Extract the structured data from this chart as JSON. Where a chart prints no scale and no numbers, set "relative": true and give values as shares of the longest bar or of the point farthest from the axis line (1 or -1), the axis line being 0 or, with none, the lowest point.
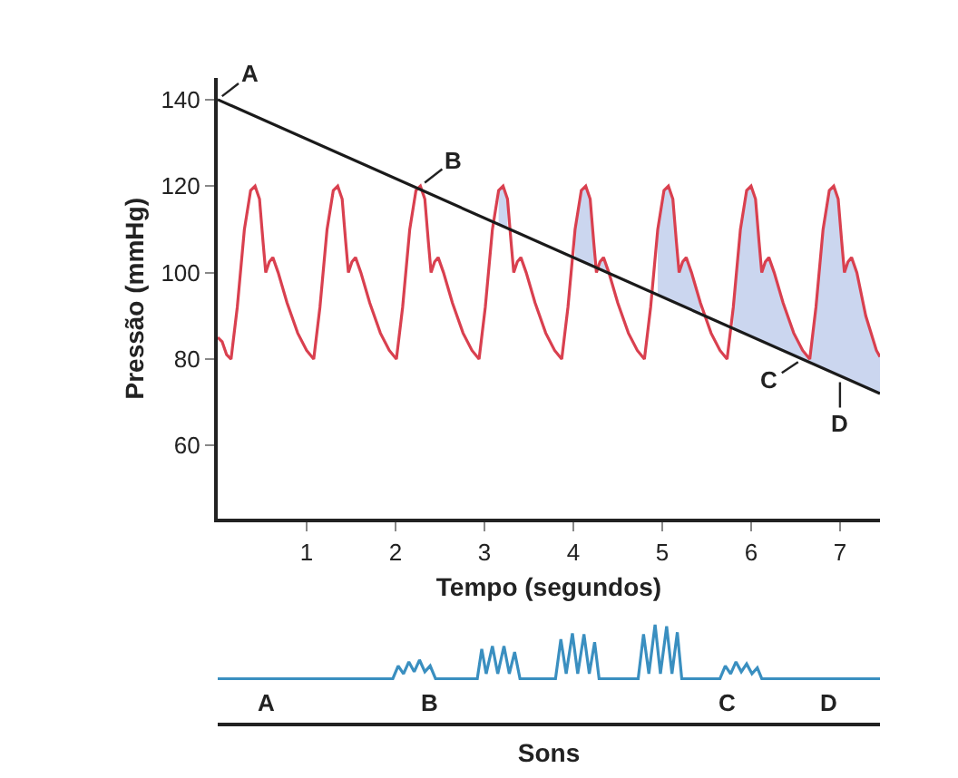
{
  "chart_data": [
    {
      "type": "line",
      "xlabel": "Tempo (segundos)",
      "ylabel": "Pressão (mmHg)",
      "xlim": [
        0,
        7.45
      ],
      "ylim": [
        43,
        145
      ],
      "xticks": [
        1,
        2,
        3,
        4,
        5,
        6,
        7
      ],
      "yticks": [
        60,
        80,
        100,
        120,
        140
      ],
      "marker": "none",
      "line_style": "solid",
      "series": [
        {
          "color": "#d9404f",
          "x": [
            0,
            0.05,
            0.1,
            0.15,
            0.22,
            0.3,
            0.37,
            0.42,
            0.47,
            0.51,
            0.54,
            0.58,
            0.62,
            0.68,
            0.78,
            0.9,
            1.0,
            1.08,
            1.15,
            1.23,
            1.3,
            1.35,
            1.4,
            1.44,
            1.47,
            1.51,
            1.55,
            1.61,
            1.71,
            1.83,
            1.93,
            2.01,
            2.08,
            2.16,
            2.23,
            2.28,
            2.33,
            2.37,
            2.4,
            2.44,
            2.48,
            2.54,
            2.64,
            2.76,
            2.86,
            2.94,
            3.01,
            3.09,
            3.16,
            3.21,
            3.26,
            3.3,
            3.33,
            3.37,
            3.41,
            3.47,
            3.57,
            3.69,
            3.79,
            3.87,
            3.94,
            4.02,
            4.09,
            4.14,
            4.19,
            4.23,
            4.26,
            4.3,
            4.34,
            4.4,
            4.5,
            4.62,
            4.72,
            4.8,
            4.87,
            4.95,
            5.02,
            5.07,
            5.12,
            5.16,
            5.19,
            5.23,
            5.27,
            5.33,
            5.43,
            5.55,
            5.65,
            5.73,
            5.8,
            5.88,
            5.95,
            6.0,
            6.05,
            6.09,
            6.12,
            6.16,
            6.2,
            6.26,
            6.36,
            6.48,
            6.58,
            6.66,
            6.73,
            6.81,
            6.88,
            6.93,
            6.98,
            7.02,
            7.05,
            7.09,
            7.13,
            7.19,
            7.29,
            7.41,
            7.45
          ],
          "values": [
            85,
            84,
            81,
            80,
            92,
            110,
            119,
            120,
            117,
            107,
            100,
            102.5,
            103.5,
            100,
            93,
            86,
            82,
            80,
            92,
            110,
            119,
            120,
            117,
            107,
            100,
            102.5,
            103.5,
            100,
            93,
            86,
            82,
            80,
            92,
            110,
            119,
            120,
            117,
            107,
            100,
            102.5,
            103.5,
            100,
            93,
            86,
            82,
            80,
            92,
            110,
            119,
            120,
            117,
            107,
            100,
            102.5,
            103.5,
            100,
            93,
            86,
            82,
            80,
            92,
            110,
            119,
            120,
            117,
            107,
            100,
            102.5,
            103.5,
            100,
            93,
            86,
            82,
            80,
            92,
            110,
            119,
            120,
            117,
            107,
            100,
            102.5,
            103.5,
            100,
            93,
            86,
            82,
            80,
            92,
            110,
            119,
            120,
            117,
            107,
            100,
            102.5,
            103.5,
            100,
            93,
            86,
            82,
            80,
            92,
            110,
            119,
            120,
            117,
            107,
            100,
            102.5,
            103.5,
            100,
            90,
            82,
            80.5
          ],
          "lower": [
            null,
            null,
            null,
            null,
            null,
            null,
            null,
            null,
            null,
            null,
            null,
            null,
            null,
            null,
            null,
            null,
            null,
            null,
            null,
            null,
            null,
            null,
            null,
            null,
            null,
            null,
            null,
            null,
            null,
            null,
            null,
            null,
            null,
            null,
            null,
            null,
            null,
            null,
            null,
            null,
            null,
            null,
            null,
            null,
            null,
            null,
            null,
            null,
            111.2,
            110.7,
            110.2,
            null,
            null,
            null,
            null,
            null,
            null,
            null,
            null,
            null,
            null,
            103.3,
            102.7,
            102.2,
            101.8,
            101.4,
            null,
            100.7,
            100.4,
            99.8,
            null,
            null,
            null,
            null,
            null,
            94.8,
            94.2,
            93.7,
            93.3,
            92.9,
            92.6,
            92.3,
            91.9,
            91.3,
            90.4,
            null,
            null,
            null,
            87.1,
            86.3,
            85.7,
            85.2,
            84.8,
            84.4,
            84.1,
            83.8,
            83.4,
            82.9,
            81.9,
            80.9,
            79.9,
            79.2,
            78.6,
            77.8,
            77.2,
            76.7,
            76.3,
            75.9,
            75.6,
            75.3,
            74.9,
            74.4,
            73.5,
            72.4,
            72.0
          ],
          "upper": [
            null,
            null,
            null,
            null,
            null,
            null,
            null,
            null,
            null,
            null,
            null,
            null,
            null,
            null,
            null,
            null,
            null,
            null,
            null,
            null,
            null,
            null,
            null,
            null,
            null,
            null,
            null,
            null,
            null,
            null,
            null,
            null,
            null,
            null,
            null,
            null,
            null,
            null,
            null,
            null,
            null,
            null,
            null,
            null,
            null,
            null,
            null,
            null,
            119,
            120,
            117,
            null,
            null,
            null,
            null,
            null,
            null,
            null,
            null,
            null,
            null,
            110,
            119,
            120,
            117,
            107,
            null,
            102.5,
            103.5,
            100,
            null,
            null,
            null,
            null,
            null,
            110,
            119,
            120,
            117,
            107,
            100,
            102.5,
            103.5,
            100,
            93,
            null,
            null,
            null,
            92,
            110,
            119,
            120,
            117,
            107,
            100,
            102.5,
            103.5,
            100,
            93,
            86,
            82,
            80,
            92,
            110,
            119,
            120,
            117,
            107,
            100,
            102.5,
            103.5,
            100,
            90,
            82,
            80.5
          ]
        },
        {
          "color": "#1a1a1a",
          "x": [
            0,
            7.45
          ],
          "values": [
            140,
            72
          ]
        }
      ],
      "annotations": [
        {
          "text": "A",
          "x": 0,
          "y": 140
        },
        {
          "text": "B",
          "x": 2.28,
          "y": 120
        },
        {
          "text": "C",
          "x": 6.58,
          "y": 80
        },
        {
          "text": "D",
          "x": 7.0,
          "y": 75.9
        }
      ]
    },
    {
      "type": "line",
      "relative": true,
      "xlabel": "Sons",
      "xlim": [
        0,
        7.45
      ],
      "marker": "none",
      "series": [
        {
          "color": "#3a8fc0",
          "x": [
            0,
            1.97,
            2.03,
            2.09,
            2.15,
            2.21,
            2.27,
            2.33,
            2.39,
            2.45,
            2.92,
            2.97,
            3.02,
            3.09,
            3.15,
            3.22,
            3.28,
            3.34,
            3.4,
            3.8,
            3.86,
            3.92,
            3.99,
            4.05,
            4.12,
            4.18,
            4.24,
            4.29,
            4.73,
            4.79,
            4.85,
            4.92,
            4.98,
            5.05,
            5.11,
            5.17,
            5.22,
            5.65,
            5.71,
            5.77,
            5.83,
            5.89,
            5.95,
            6.01,
            6.07,
            6.12,
            7.45
          ],
          "values": [
            0.45,
            0.45,
            0.58,
            0.5,
            0.62,
            0.52,
            0.64,
            0.52,
            0.58,
            0.45,
            0.45,
            0.75,
            0.5,
            0.78,
            0.5,
            0.78,
            0.5,
            0.72,
            0.45,
            0.45,
            0.85,
            0.5,
            0.91,
            0.5,
            0.9,
            0.5,
            0.82,
            0.45,
            0.45,
            0.9,
            0.5,
            1.0,
            0.5,
            0.98,
            0.5,
            0.92,
            0.45,
            0.45,
            0.58,
            0.5,
            0.62,
            0.52,
            0.6,
            0.5,
            0.56,
            0.45,
            0.45
          ]
        }
      ],
      "annotations": [
        "A",
        "B",
        "C",
        "D"
      ]
    }
  ]
}
